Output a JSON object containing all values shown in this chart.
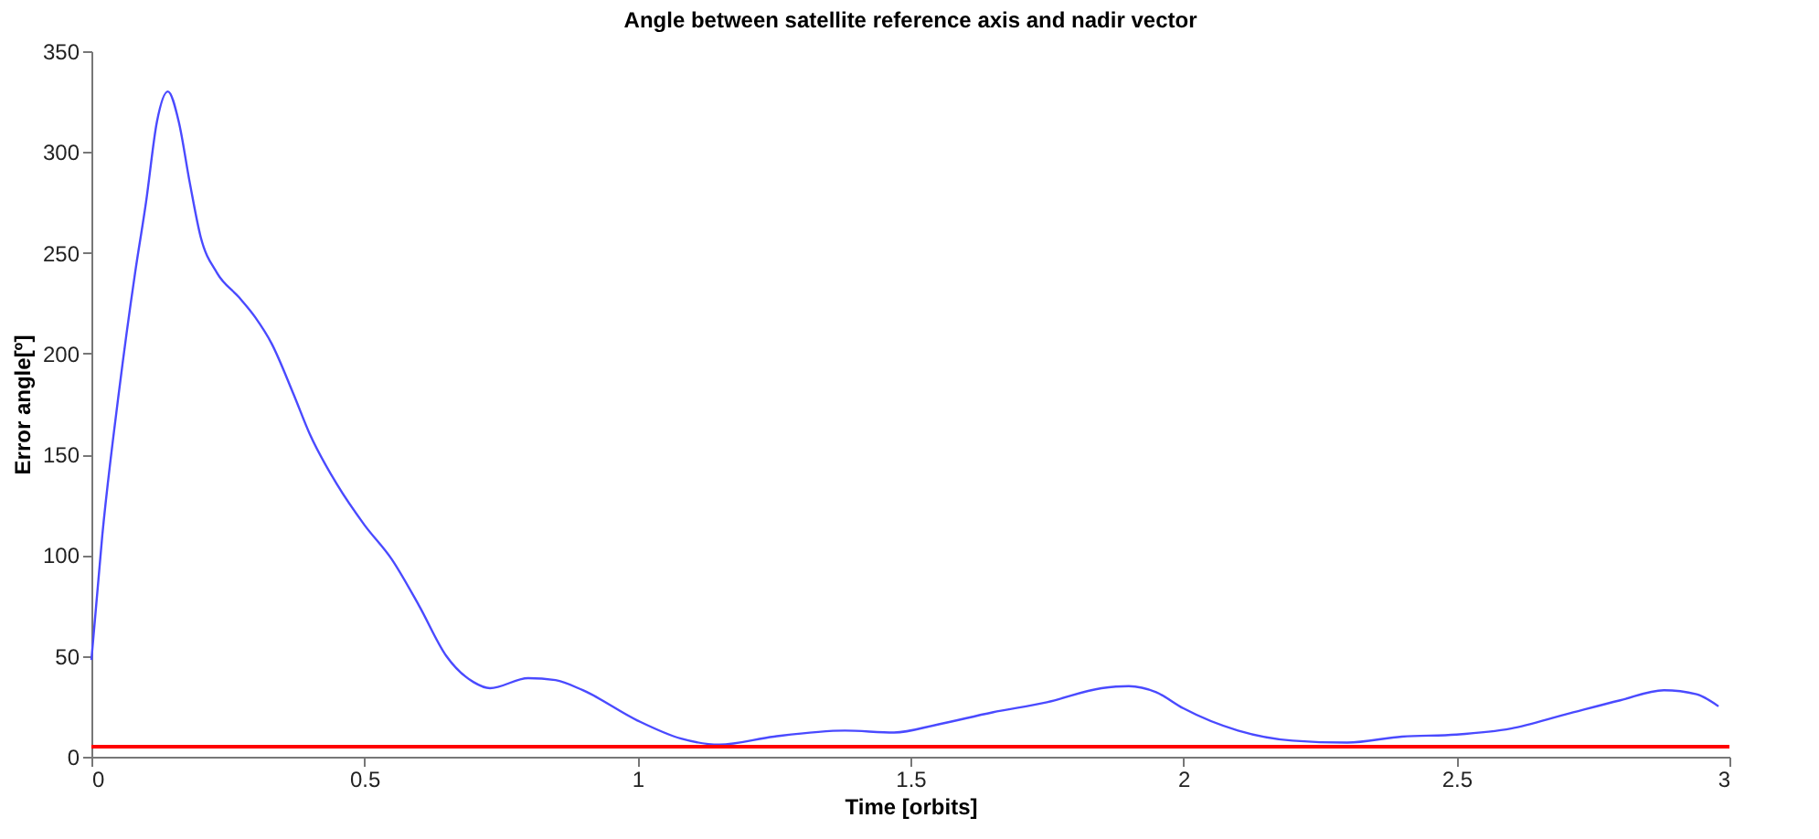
{
  "chart_data": {
    "type": "line",
    "title": "Angle between satellite reference axis and nadir vector",
    "xlabel": "Time [orbits]",
    "ylabel": "Error angle[º]",
    "xlim": [
      0,
      3
    ],
    "xticks": [
      0,
      0.5,
      1,
      1.5,
      2,
      2.5,
      3
    ],
    "ylim": [
      0,
      350
    ],
    "yticks": [
      0,
      50,
      100,
      150,
      200,
      250,
      300,
      350
    ],
    "grid": false,
    "line_style": "solid",
    "marker": "none",
    "series": [
      {
        "color": "#4a4aff",
        "x": [
          0,
          0.02,
          0.05,
          0.08,
          0.1,
          0.12,
          0.14,
          0.16,
          0.18,
          0.2,
          0.23,
          0.27,
          0.3,
          0.33,
          0.37,
          0.4,
          0.45,
          0.5,
          0.55,
          0.6,
          0.65,
          0.7,
          0.73,
          0.8,
          0.85,
          0.9,
          1.0,
          1.08,
          1.15,
          1.25,
          1.38,
          1.47,
          1.55,
          1.65,
          1.75,
          1.85,
          1.9,
          1.95,
          2.0,
          2.1,
          2.2,
          2.3,
          2.4,
          2.5,
          2.6,
          2.7,
          2.8,
          2.88,
          2.94,
          2.98
        ],
        "values": [
          48,
          110,
          180,
          240,
          275,
          315,
          330,
          315,
          285,
          258,
          240,
          228,
          218,
          205,
          180,
          160,
          135,
          115,
          98,
          75,
          50,
          37,
          34,
          39,
          38,
          33,
          18,
          9,
          6,
          10,
          13,
          12,
          16,
          22,
          27,
          34,
          35,
          32,
          24,
          13,
          8,
          7,
          10,
          11,
          14,
          21,
          28,
          33,
          31,
          25
        ]
      }
    ],
    "ref_lines": [
      {
        "axis": "y",
        "value": 5,
        "color": "#ff0000"
      }
    ]
  }
}
